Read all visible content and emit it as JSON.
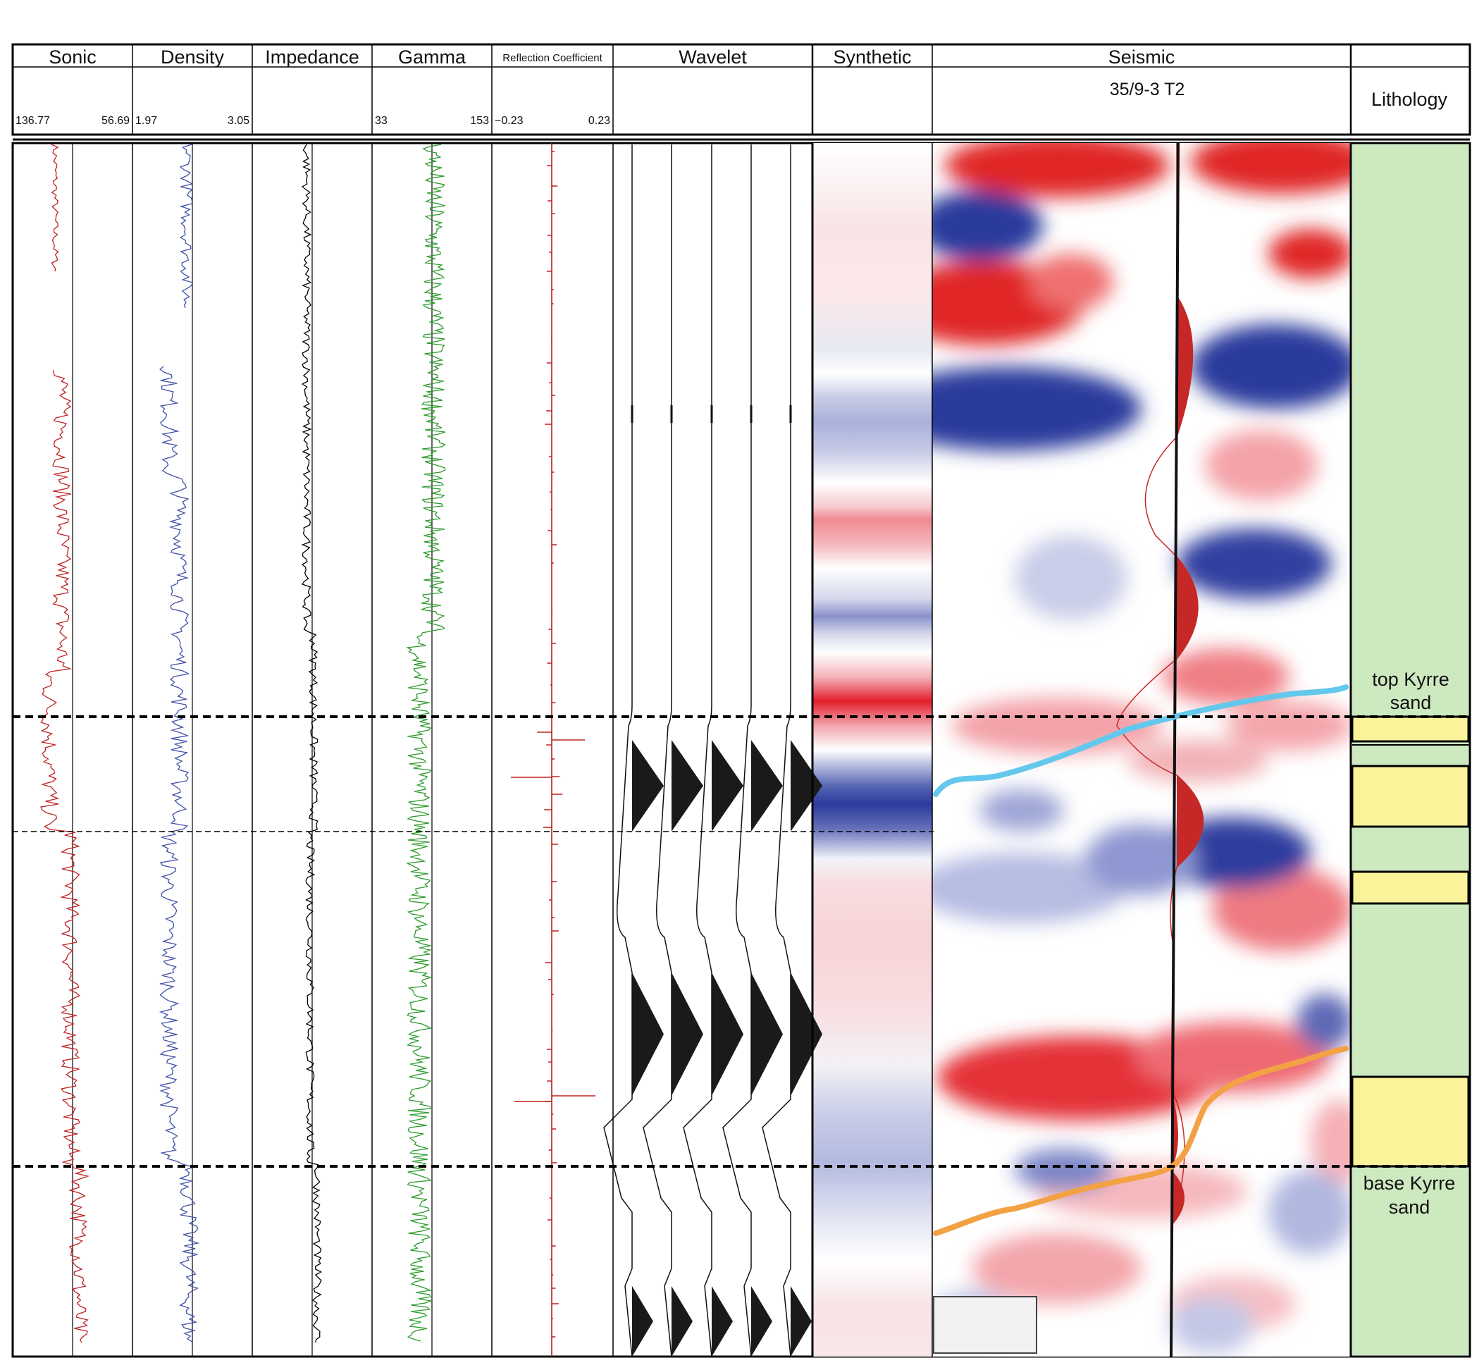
{
  "tracks": [
    {
      "name": "Sonic",
      "left": "136.77",
      "right": "56.69"
    },
    {
      "name": "Density",
      "left": "1.97",
      "right": "3.05"
    },
    {
      "name": "Impedance",
      "left": "",
      "right": ""
    },
    {
      "name": "Gamma",
      "left": "33",
      "right": "153"
    },
    {
      "name": "Reflection Coefficient",
      "left": "−0.23",
      "right": "0.23"
    },
    {
      "name": "Wavelet",
      "left": "",
      "right": ""
    },
    {
      "name": "Synthetic",
      "left": "",
      "right": ""
    },
    {
      "name": "Seismic",
      "left": "",
      "right": ""
    }
  ],
  "seismic_well": "35/9-3 T2",
  "lithology": {
    "title": "Lithology",
    "top_label_line1": "top Kyrre",
    "top_label_line2": "sand",
    "base_label_line1": "base Kyrre",
    "base_label_line2": "sand",
    "colors": {
      "shale": "#cde9c0",
      "sand": "#fbf39a"
    }
  },
  "horizons": {
    "top_kyrre_color": "#64c8ec",
    "base_kyrre_color": "#f2a244"
  },
  "log_colors": {
    "sonic": "#c02020",
    "density": "#4050a8",
    "impedance": "#000000",
    "gamma": "#2a9a2a",
    "reflection": "#c02020",
    "seismic_positive": "#e02828",
    "seismic_negative": "#2b3a9c"
  }
}
